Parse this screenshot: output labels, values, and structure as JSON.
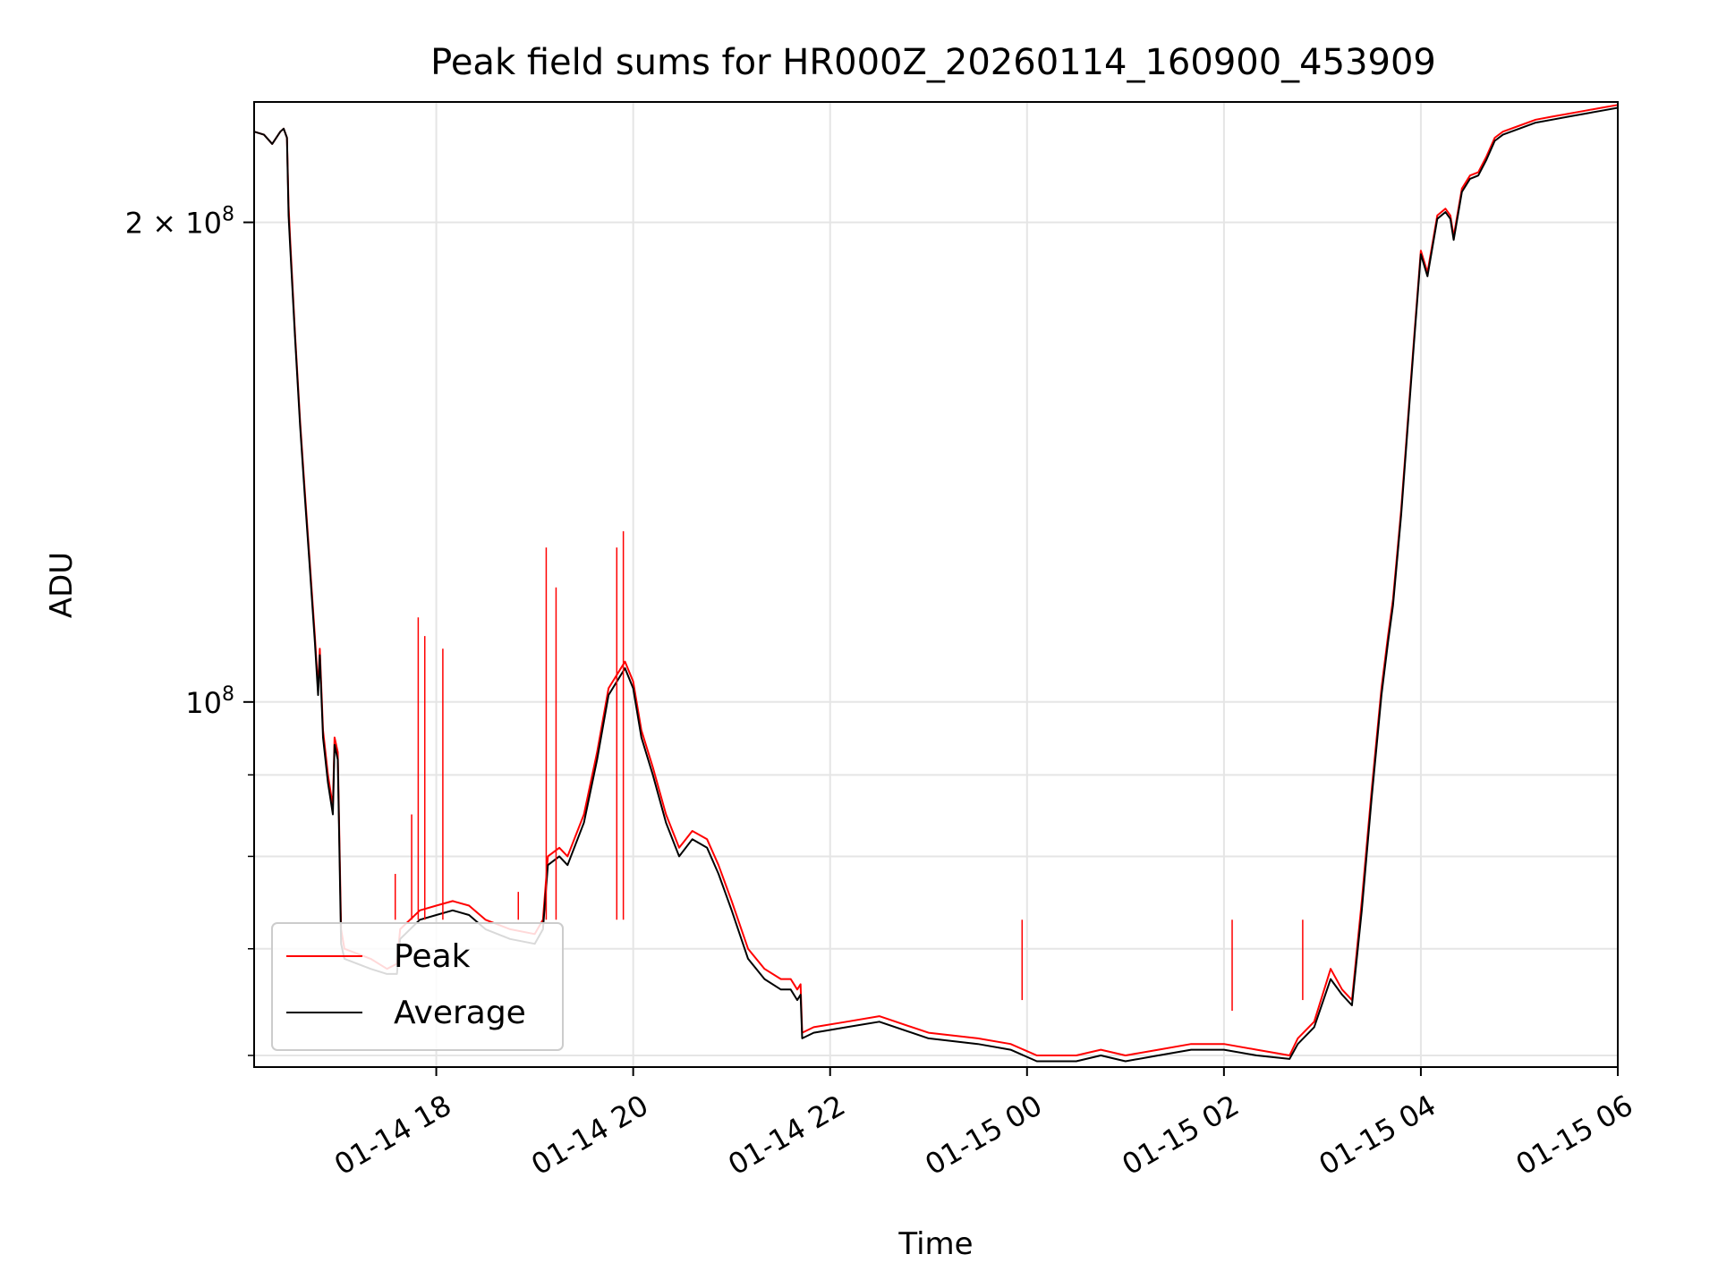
{
  "chart_data": {
    "type": "line",
    "title": "Peak field sums for HR000Z_20260114_160900_453909",
    "xlabel": "Time",
    "ylabel": "ADU",
    "yscale": "log",
    "grid": true,
    "legend_position": "lower-left",
    "xlim": [
      "2026-01-14 16:09",
      "2026-01-15 06:00"
    ],
    "ylim": [
      59000000,
      238000000
    ],
    "x_ticks": [
      {
        "value": "2026-01-14 18:00",
        "label": "01-14 18"
      },
      {
        "value": "2026-01-14 20:00",
        "label": "01-14 20"
      },
      {
        "value": "2026-01-14 22:00",
        "label": "01-14 22"
      },
      {
        "value": "2026-01-15 00:00",
        "label": "01-15 00"
      },
      {
        "value": "2026-01-15 02:00",
        "label": "01-15 02"
      },
      {
        "value": "2026-01-15 04:00",
        "label": "01-15 04"
      },
      {
        "value": "2026-01-15 06:00",
        "label": "01-15 06"
      }
    ],
    "y_major_ticks": [
      {
        "value": 100000000,
        "base": "10",
        "exp": "8"
      },
      {
        "value": 200000000,
        "mant": "2",
        "times": "×",
        "base": "10",
        "exp": "8"
      }
    ],
    "y_minor_ticks": [
      60000000,
      70000000,
      80000000,
      90000000
    ],
    "series": [
      {
        "name": "Peak",
        "color": "#ff0000",
        "points": [
          [
            "2026-01-14 16:09",
            228000000.0
          ],
          [
            "2026-01-14 16:15",
            227000000.0
          ],
          [
            "2026-01-14 16:20",
            224000000.0
          ],
          [
            "2026-01-14 16:25",
            228000000.0
          ],
          [
            "2026-01-14 16:27",
            229000000.0
          ],
          [
            "2026-01-14 16:29",
            226000000.0
          ],
          [
            "2026-01-14 16:30",
            205000000.0
          ],
          [
            "2026-01-14 16:31",
            195000000.0
          ],
          [
            "2026-01-14 16:34",
            170000000.0
          ],
          [
            "2026-01-14 16:37",
            150000000.0
          ],
          [
            "2026-01-14 16:40",
            135000000.0
          ],
          [
            "2026-01-14 16:43",
            122000000.0
          ],
          [
            "2026-01-14 16:46",
            110000000.0
          ],
          [
            "2026-01-14 16:48",
            102000000.0
          ],
          [
            "2026-01-14 16:49",
            108000000.0
          ],
          [
            "2026-01-14 16:51",
            96000000.0
          ],
          [
            "2026-01-14 16:54",
            90000000.0
          ],
          [
            "2026-01-14 16:57",
            86000000.0
          ],
          [
            "2026-01-14 16:58",
            95000000.0
          ],
          [
            "2026-01-14 17:00",
            93000000.0
          ],
          [
            "2026-01-14 17:02",
            72000000.0
          ],
          [
            "2026-01-14 17:04",
            70000000.0
          ],
          [
            "2026-01-14 17:20",
            69000000.0
          ],
          [
            "2026-01-14 17:30",
            68000000.0
          ],
          [
            "2026-01-14 17:36",
            68500000.0
          ],
          [
            "2026-01-14 17:38",
            72000000.0
          ],
          [
            "2026-01-14 17:50",
            74000000.0
          ],
          [
            "2026-01-14 18:00",
            74500000.0
          ],
          [
            "2026-01-14 18:10",
            75000000.0
          ],
          [
            "2026-01-14 18:20",
            74500000.0
          ],
          [
            "2026-01-14 18:30",
            73000000.0
          ],
          [
            "2026-01-14 18:45",
            72000000.0
          ],
          [
            "2026-01-14 19:00",
            71500000.0
          ],
          [
            "2026-01-14 19:05",
            73000000.0
          ],
          [
            "2026-01-14 19:08",
            80000000.0
          ],
          [
            "2026-01-14 19:15",
            81000000.0
          ],
          [
            "2026-01-14 19:20",
            80000000.0
          ],
          [
            "2026-01-14 19:30",
            85000000.0
          ],
          [
            "2026-01-14 19:38",
            93000000.0
          ],
          [
            "2026-01-14 19:45",
            102000000.0
          ],
          [
            "2026-01-14 19:55",
            106000000.0
          ],
          [
            "2026-01-14 20:00",
            103000000.0
          ],
          [
            "2026-01-14 20:05",
            96000000.0
          ],
          [
            "2026-01-14 20:12",
            91000000.0
          ],
          [
            "2026-01-14 20:20",
            85000000.0
          ],
          [
            "2026-01-14 20:28",
            81000000.0
          ],
          [
            "2026-01-14 20:36",
            83000000.0
          ],
          [
            "2026-01-14 20:45",
            82000000.0
          ],
          [
            "2026-01-14 20:52",
            79000000.0
          ],
          [
            "2026-01-14 21:00",
            75000000.0
          ],
          [
            "2026-01-14 21:10",
            70000000.0
          ],
          [
            "2026-01-14 21:20",
            68000000.0
          ],
          [
            "2026-01-14 21:30",
            67000000.0
          ],
          [
            "2026-01-14 21:36",
            67000000.0
          ],
          [
            "2026-01-14 21:40",
            66000000.0
          ],
          [
            "2026-01-14 21:42",
            66500000.0
          ],
          [
            "2026-01-14 21:43",
            62000000.0
          ],
          [
            "2026-01-14 21:50",
            62500000.0
          ],
          [
            "2026-01-14 22:10",
            63000000.0
          ],
          [
            "2026-01-14 22:30",
            63500000.0
          ],
          [
            "2026-01-14 23:00",
            62000000.0
          ],
          [
            "2026-01-14 23:30",
            61500000.0
          ],
          [
            "2026-01-14 23:50",
            61000000.0
          ],
          [
            "2026-01-15 00:06",
            60000000.0
          ],
          [
            "2026-01-15 00:30",
            60000000.0
          ],
          [
            "2026-01-15 00:45",
            60500000.0
          ],
          [
            "2026-01-15 01:00",
            60000000.0
          ],
          [
            "2026-01-15 01:20",
            60500000.0
          ],
          [
            "2026-01-15 01:40",
            61000000.0
          ],
          [
            "2026-01-15 02:00",
            61000000.0
          ],
          [
            "2026-01-15 02:20",
            60500000.0
          ],
          [
            "2026-01-15 02:40",
            60000000.0
          ],
          [
            "2026-01-15 02:45",
            61500000.0
          ],
          [
            "2026-01-15 02:55",
            63000000.0
          ],
          [
            "2026-01-15 03:05",
            68000000.0
          ],
          [
            "2026-01-15 03:12",
            66000000.0
          ],
          [
            "2026-01-15 03:18",
            65000000.0
          ],
          [
            "2026-01-15 03:24",
            75000000.0
          ],
          [
            "2026-01-15 03:30",
            88000000.0
          ],
          [
            "2026-01-15 03:36",
            102000000.0
          ],
          [
            "2026-01-15 03:40",
            110000000.0
          ],
          [
            "2026-01-15 03:43",
            116000000.0
          ],
          [
            "2026-01-15 03:48",
            132000000.0
          ],
          [
            "2026-01-15 03:52",
            150000000.0
          ],
          [
            "2026-01-15 03:56",
            170000000.0
          ],
          [
            "2026-01-15 04:00",
            192000000.0
          ],
          [
            "2026-01-15 04:04",
            186000000.0
          ],
          [
            "2026-01-15 04:10",
            202000000.0
          ],
          [
            "2026-01-15 04:15",
            204000000.0
          ],
          [
            "2026-01-15 04:18",
            202000000.0
          ],
          [
            "2026-01-15 04:20",
            196000000.0
          ],
          [
            "2026-01-15 04:25",
            210000000.0
          ],
          [
            "2026-01-15 04:30",
            214000000.0
          ],
          [
            "2026-01-15 04:35",
            215000000.0
          ],
          [
            "2026-01-15 04:40",
            220000000.0
          ],
          [
            "2026-01-15 04:45",
            226000000.0
          ],
          [
            "2026-01-15 04:50",
            228000000.0
          ],
          [
            "2026-01-15 05:00",
            230000000.0
          ],
          [
            "2026-01-15 05:10",
            232000000.0
          ],
          [
            "2026-01-15 05:20",
            233000000.0
          ],
          [
            "2026-01-15 05:30",
            234000000.0
          ],
          [
            "2026-01-15 05:40",
            235000000.0
          ],
          [
            "2026-01-15 05:50",
            236000000.0
          ],
          [
            "2026-01-15 06:00",
            237000000.0
          ]
        ]
      },
      {
        "name": "Average",
        "color": "#000000",
        "points": [
          [
            "2026-01-14 16:09",
            228000000.0
          ],
          [
            "2026-01-14 16:15",
            227000000.0
          ],
          [
            "2026-01-14 16:20",
            224000000.0
          ],
          [
            "2026-01-14 16:25",
            228000000.0
          ],
          [
            "2026-01-14 16:27",
            229000000.0
          ],
          [
            "2026-01-14 16:29",
            226000000.0
          ],
          [
            "2026-01-14 16:30",
            202000000.0
          ],
          [
            "2026-01-14 16:31",
            193000000.0
          ],
          [
            "2026-01-14 16:34",
            169000000.0
          ],
          [
            "2026-01-14 16:37",
            149000000.0
          ],
          [
            "2026-01-14 16:40",
            134000000.0
          ],
          [
            "2026-01-14 16:43",
            121000000.0
          ],
          [
            "2026-01-14 16:46",
            109000000.0
          ],
          [
            "2026-01-14 16:48",
            101000000.0
          ],
          [
            "2026-01-14 16:49",
            107000000.0
          ],
          [
            "2026-01-14 16:51",
            95000000.0
          ],
          [
            "2026-01-14 16:54",
            89000000.0
          ],
          [
            "2026-01-14 16:57",
            85000000.0
          ],
          [
            "2026-01-14 16:58",
            94000000.0
          ],
          [
            "2026-01-14 17:00",
            92000000.0
          ],
          [
            "2026-01-14 17:02",
            70500000.0
          ],
          [
            "2026-01-14 17:04",
            69000000.0
          ],
          [
            "2026-01-14 17:20",
            68000000.0
          ],
          [
            "2026-01-14 17:30",
            67500000.0
          ],
          [
            "2026-01-14 17:36",
            67500000.0
          ],
          [
            "2026-01-14 17:38",
            71000000.0
          ],
          [
            "2026-01-14 17:50",
            73000000.0
          ],
          [
            "2026-01-14 18:00",
            73500000.0
          ],
          [
            "2026-01-14 18:10",
            74000000.0
          ],
          [
            "2026-01-14 18:20",
            73500000.0
          ],
          [
            "2026-01-14 18:30",
            72000000.0
          ],
          [
            "2026-01-14 18:45",
            71000000.0
          ],
          [
            "2026-01-14 19:00",
            70500000.0
          ],
          [
            "2026-01-14 19:05",
            72000000.0
          ],
          [
            "2026-01-14 19:08",
            79000000.0
          ],
          [
            "2026-01-14 19:15",
            80000000.0
          ],
          [
            "2026-01-14 19:20",
            79000000.0
          ],
          [
            "2026-01-14 19:30",
            84000000.0
          ],
          [
            "2026-01-14 19:38",
            92000000.0
          ],
          [
            "2026-01-14 19:45",
            101000000.0
          ],
          [
            "2026-01-14 19:55",
            105000000.0
          ],
          [
            "2026-01-14 20:00",
            102000000.0
          ],
          [
            "2026-01-14 20:05",
            95000000.0
          ],
          [
            "2026-01-14 20:12",
            90000000.0
          ],
          [
            "2026-01-14 20:20",
            84000000.0
          ],
          [
            "2026-01-14 20:28",
            80000000.0
          ],
          [
            "2026-01-14 20:36",
            82000000.0
          ],
          [
            "2026-01-14 20:45",
            81000000.0
          ],
          [
            "2026-01-14 20:52",
            78000000.0
          ],
          [
            "2026-01-14 21:00",
            74000000.0
          ],
          [
            "2026-01-14 21:10",
            69000000.0
          ],
          [
            "2026-01-14 21:20",
            67000000.0
          ],
          [
            "2026-01-14 21:30",
            66000000.0
          ],
          [
            "2026-01-14 21:36",
            66000000.0
          ],
          [
            "2026-01-14 21:40",
            65000000.0
          ],
          [
            "2026-01-14 21:42",
            65500000.0
          ],
          [
            "2026-01-14 21:43",
            61500000.0
          ],
          [
            "2026-01-14 21:50",
            62000000.0
          ],
          [
            "2026-01-14 22:10",
            62500000.0
          ],
          [
            "2026-01-14 22:30",
            63000000.0
          ],
          [
            "2026-01-14 23:00",
            61500000.0
          ],
          [
            "2026-01-14 23:30",
            61000000.0
          ],
          [
            "2026-01-14 23:50",
            60500000.0
          ],
          [
            "2026-01-15 00:06",
            59500000.0
          ],
          [
            "2026-01-15 00:30",
            59500000.0
          ],
          [
            "2026-01-15 00:45",
            60000000.0
          ],
          [
            "2026-01-15 01:00",
            59500000.0
          ],
          [
            "2026-01-15 01:20",
            60000000.0
          ],
          [
            "2026-01-15 01:40",
            60500000.0
          ],
          [
            "2026-01-15 02:00",
            60500000.0
          ],
          [
            "2026-01-15 02:20",
            60000000.0
          ],
          [
            "2026-01-15 02:40",
            59700000.0
          ],
          [
            "2026-01-15 02:45",
            61000000.0
          ],
          [
            "2026-01-15 02:55",
            62500000.0
          ],
          [
            "2026-01-15 03:05",
            67000000.0
          ],
          [
            "2026-01-15 03:12",
            65500000.0
          ],
          [
            "2026-01-15 03:18",
            64500000.0
          ],
          [
            "2026-01-15 03:24",
            74000000.0
          ],
          [
            "2026-01-15 03:30",
            87000000.0
          ],
          [
            "2026-01-15 03:36",
            101000000.0
          ],
          [
            "2026-01-15 03:40",
            109000000.0
          ],
          [
            "2026-01-15 03:43",
            115000000.0
          ],
          [
            "2026-01-15 03:48",
            131000000.0
          ],
          [
            "2026-01-15 03:52",
            149000000.0
          ],
          [
            "2026-01-15 03:56",
            169000000.0
          ],
          [
            "2026-01-15 04:00",
            191000000.0
          ],
          [
            "2026-01-15 04:04",
            185000000.0
          ],
          [
            "2026-01-15 04:10",
            201000000.0
          ],
          [
            "2026-01-15 04:15",
            203000000.0
          ],
          [
            "2026-01-15 04:18",
            201000000.0
          ],
          [
            "2026-01-15 04:20",
            195000000.0
          ],
          [
            "2026-01-15 04:25",
            209000000.0
          ],
          [
            "2026-01-15 04:30",
            213000000.0
          ],
          [
            "2026-01-15 04:35",
            214000000.0
          ],
          [
            "2026-01-15 04:40",
            219000000.0
          ],
          [
            "2026-01-15 04:45",
            225000000.0
          ],
          [
            "2026-01-15 04:50",
            227000000.0
          ],
          [
            "2026-01-15 05:00",
            229000000.0
          ],
          [
            "2026-01-15 05:10",
            231000000.0
          ],
          [
            "2026-01-15 05:20",
            232000000.0
          ],
          [
            "2026-01-15 05:30",
            233000000.0
          ],
          [
            "2026-01-15 05:40",
            234000000.0
          ],
          [
            "2026-01-15 05:50",
            235000000.0
          ],
          [
            "2026-01-15 06:00",
            236000000.0
          ]
        ]
      }
    ],
    "spikes": [
      {
        "x": "2026-01-14 17:35",
        "y": 78000000.0
      },
      {
        "x": "2026-01-14 17:45",
        "y": 85000000.0
      },
      {
        "x": "2026-01-14 17:49",
        "y": 113000000.0
      },
      {
        "x": "2026-01-14 17:53",
        "y": 110000000.0
      },
      {
        "x": "2026-01-14 18:04",
        "y": 108000000.0
      },
      {
        "x": "2026-01-14 18:50",
        "y": 76000000.0
      },
      {
        "x": "2026-01-14 19:07",
        "y": 125000000.0
      },
      {
        "x": "2026-01-14 19:13",
        "y": 118000000.0
      },
      {
        "x": "2026-01-14 19:50",
        "y": 125000000.0
      },
      {
        "x": "2026-01-14 19:54",
        "y": 128000000.0
      },
      {
        "x": "2026-01-14 23:57",
        "y": 65000000.0
      },
      {
        "x": "2026-01-15 02:05",
        "y": 64000000.0
      },
      {
        "x": "2026-01-15 02:48",
        "y": 65000000.0
      }
    ]
  }
}
